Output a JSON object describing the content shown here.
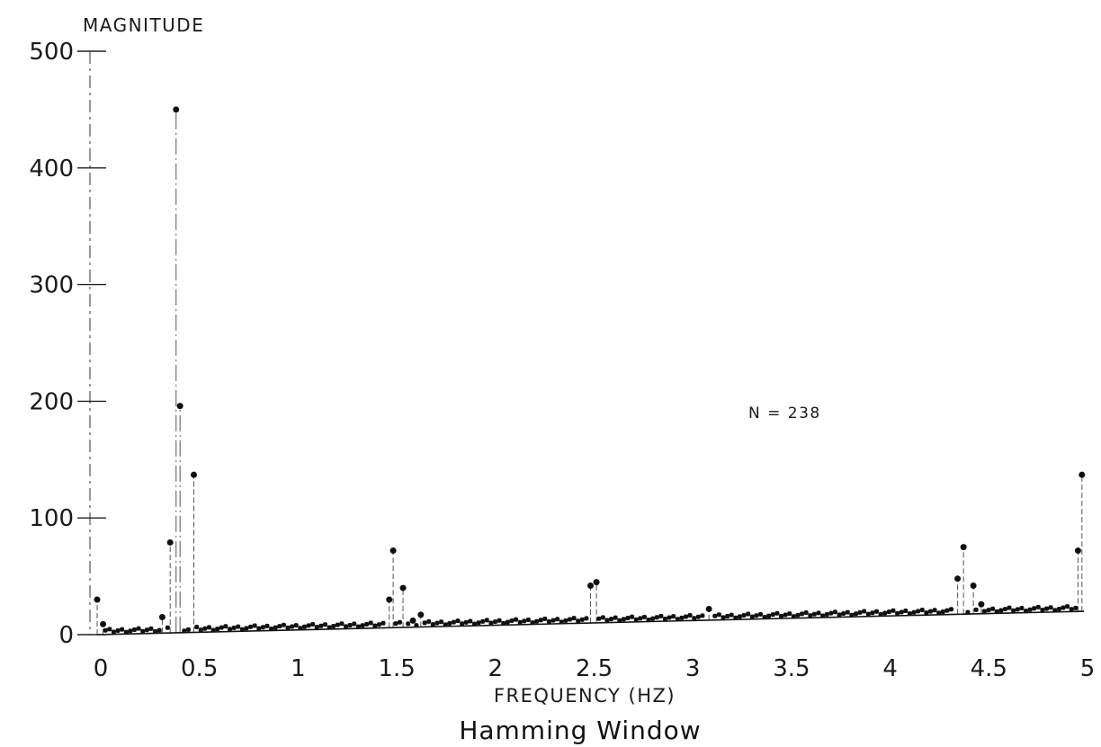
{
  "chart_data": {
    "type": "scatter",
    "style": "stem",
    "title": "Hamming Window",
    "ylabel": "MAGNITUDE",
    "xlabel": "FREQUENCY (HZ)",
    "annotation": "N = 238",
    "xlim": [
      0,
      5
    ],
    "ylim": [
      0,
      500
    ],
    "xticks": [
      0,
      0.5,
      1,
      1.5,
      2,
      2.5,
      3,
      3.5,
      4,
      4.5,
      5
    ],
    "xtick_labels": [
      "0",
      "0.5",
      "1",
      "1.5",
      "2",
      "2.5",
      "3",
      "3.5",
      "4",
      "4.5",
      "5"
    ],
    "yticks": [
      0,
      100,
      200,
      300,
      400,
      500
    ],
    "ytick_labels": [
      "0",
      "100",
      "200",
      "300",
      "400",
      "500"
    ],
    "grid": false,
    "baseline": {
      "x": [
        0,
        5
      ],
      "y": [
        0,
        20
      ]
    },
    "peaks": [
      {
        "x": 0.0,
        "y": 30
      },
      {
        "x": 0.03,
        "y": 9
      },
      {
        "x": 0.33,
        "y": 15
      },
      {
        "x": 0.37,
        "y": 79
      },
      {
        "x": 0.4,
        "y": 450
      },
      {
        "x": 0.42,
        "y": 196
      },
      {
        "x": 0.49,
        "y": 137
      },
      {
        "x": 1.48,
        "y": 30
      },
      {
        "x": 1.5,
        "y": 72
      },
      {
        "x": 1.55,
        "y": 40
      },
      {
        "x": 1.6,
        "y": 12
      },
      {
        "x": 1.64,
        "y": 17
      },
      {
        "x": 2.5,
        "y": 42
      },
      {
        "x": 2.53,
        "y": 45
      },
      {
        "x": 3.1,
        "y": 22
      },
      {
        "x": 4.36,
        "y": 48
      },
      {
        "x": 4.39,
        "y": 75
      },
      {
        "x": 4.44,
        "y": 42
      },
      {
        "x": 4.48,
        "y": 26
      },
      {
        "x": 4.97,
        "y": 72
      },
      {
        "x": 4.99,
        "y": 137
      }
    ]
  }
}
